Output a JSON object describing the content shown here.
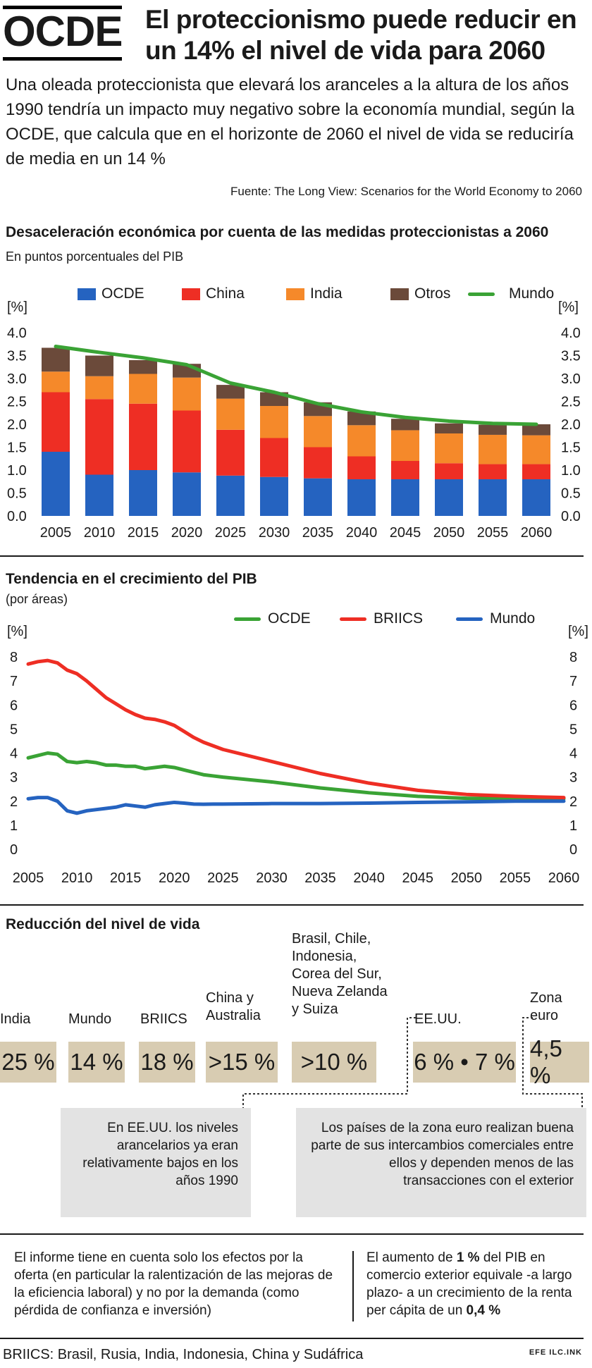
{
  "header": {
    "logo": "OCDE",
    "title_line1": "El proteccionismo puede reducir en",
    "title_line2": "un 14% el nivel de vida para 2060",
    "intro": "Una oleada proteccionista que elevará los aranceles a la altura de los años 1990 tendría un impacto muy negativo sobre la economía mundial, según la OCDE, que calcula que en el horizonte de 2060 el nivel de vida se reduciría de media en un 14 %",
    "source": "Fuente: The Long View: Scenarios for the World Economy to 2060"
  },
  "section1": {
    "title": "Desaceleración económica por cuenta de las medidas proteccionistas a 2060",
    "subtitle": "En puntos porcentuales del PIB",
    "unit_left": "[%]",
    "unit_right": "[%]"
  },
  "section2": {
    "title": "Tendencia en el crecimiento del PIB",
    "subtitle": "(por áreas)",
    "unit_left": "[%]",
    "unit_right": "[%]"
  },
  "chart_data": [
    {
      "type": "bar",
      "stacked": true,
      "categories": [
        "2005",
        "2010",
        "2015",
        "2020",
        "2025",
        "2030",
        "2035",
        "2040",
        "2045",
        "2050",
        "2055",
        "2060"
      ],
      "series": [
        {
          "name": "OCDE",
          "color": "#2563c0",
          "values": [
            1.4,
            0.9,
            1.0,
            0.95,
            0.88,
            0.85,
            0.82,
            0.8,
            0.8,
            0.8,
            0.8,
            0.8
          ]
        },
        {
          "name": "China",
          "color": "#ee2e24",
          "values": [
            1.3,
            1.65,
            1.45,
            1.35,
            1.0,
            0.85,
            0.68,
            0.5,
            0.4,
            0.35,
            0.33,
            0.33
          ]
        },
        {
          "name": "India",
          "color": "#f5892a",
          "values": [
            0.45,
            0.5,
            0.65,
            0.72,
            0.68,
            0.7,
            0.68,
            0.68,
            0.67,
            0.65,
            0.64,
            0.63
          ]
        },
        {
          "name": "Otros",
          "color": "#6b4a3a",
          "values": [
            0.52,
            0.45,
            0.3,
            0.3,
            0.3,
            0.3,
            0.3,
            0.3,
            0.25,
            0.22,
            0.22,
            0.24
          ]
        }
      ],
      "line": {
        "name": "Mundo",
        "color": "#3aa335",
        "values": [
          3.7,
          3.57,
          3.45,
          3.3,
          2.9,
          2.7,
          2.45,
          2.27,
          2.15,
          2.07,
          2.02,
          2.0
        ]
      },
      "yticks": [
        "0.0",
        "0.5",
        "1.0",
        "1.5",
        "2.0",
        "2.5",
        "3.0",
        "3.5",
        "4.0"
      ],
      "ylim": [
        0,
        4.0
      ]
    },
    {
      "type": "line",
      "x": [
        2005,
        2006,
        2007,
        2008,
        2009,
        2010,
        2011,
        2012,
        2013,
        2014,
        2015,
        2016,
        2017,
        2018,
        2019,
        2020,
        2021,
        2022,
        2023,
        2024,
        2025,
        2030,
        2035,
        2040,
        2045,
        2050,
        2055,
        2060
      ],
      "series": [
        {
          "name": "OCDE",
          "color": "#3aa335",
          "values": [
            3.8,
            3.9,
            4.0,
            3.95,
            3.65,
            3.6,
            3.65,
            3.6,
            3.5,
            3.5,
            3.45,
            3.45,
            3.35,
            3.4,
            3.45,
            3.4,
            3.3,
            3.2,
            3.1,
            3.05,
            3.0,
            2.8,
            2.55,
            2.35,
            2.2,
            2.12,
            2.1,
            2.1
          ]
        },
        {
          "name": "BRIICS",
          "color": "#ee2e24",
          "values": [
            7.7,
            7.8,
            7.85,
            7.75,
            7.45,
            7.3,
            7.0,
            6.65,
            6.3,
            6.05,
            5.8,
            5.6,
            5.45,
            5.4,
            5.3,
            5.15,
            4.9,
            4.65,
            4.45,
            4.3,
            4.15,
            3.65,
            3.15,
            2.75,
            2.45,
            2.28,
            2.2,
            2.15
          ]
        },
        {
          "name": "Mundo",
          "color": "#2563c0",
          "values": [
            2.1,
            2.15,
            2.15,
            2.0,
            1.6,
            1.5,
            1.6,
            1.65,
            1.7,
            1.75,
            1.85,
            1.8,
            1.75,
            1.85,
            1.9,
            1.95,
            1.92,
            1.88,
            1.87,
            1.88,
            1.88,
            1.9,
            1.9,
            1.92,
            1.95,
            1.97,
            2.0,
            2.0
          ]
        }
      ],
      "ticks_x": [
        "2005",
        "2010",
        "2015",
        "2020",
        "2025",
        "2030",
        "2035",
        "2040",
        "2045",
        "2050",
        "2055",
        "2060"
      ],
      "yticks": [
        "0",
        "1",
        "2",
        "3",
        "4",
        "5",
        "6",
        "7",
        "8"
      ],
      "ylim": [
        0,
        8
      ]
    }
  ],
  "section3": {
    "title": "Reducción del nivel de vida",
    "items": [
      {
        "label": "India",
        "value": "25 %"
      },
      {
        "label": "Mundo",
        "value": "14 %"
      },
      {
        "label": "BRIICS",
        "value": "18 %"
      },
      {
        "label": "China y Australia",
        "value": ">15 %"
      },
      {
        "label": "Brasil, Chile, Indonesia, Corea del Sur, Nueva Zelanda y Suiza",
        "value": ">10 %"
      },
      {
        "label": "EE.UU.",
        "value": "6 % • 7 %"
      },
      {
        "label": "Zona euro",
        "value": "4,5 %"
      }
    ],
    "note_usa": "En EE.UU. los niveles arancelarios ya eran relativamente bajos en los años 1990",
    "note_euro": "Los países de la zona euro realizan buena parte de sus intercambios comerciales entre ellos y dependen menos de las transacciones con el exterior"
  },
  "footer": {
    "left_text": "El informe tiene en cuenta solo los efectos por la oferta (en particular la ralentización de las mejoras de la eficiencia laboral) y no por la demanda (como pérdida de confianza e inversión)",
    "right_pre": "El aumento de ",
    "right_bold1": "1 %",
    "right_mid": " del PIB en comercio exterior equivale -a largo plazo- a un crecimiento de la renta per cápita de un ",
    "right_bold2": "0,4 %",
    "briics_note": "BRIICS: Brasil, Rusia, India, Indonesia, China y Sudáfrica",
    "credit": "EFE ILC.INK"
  }
}
